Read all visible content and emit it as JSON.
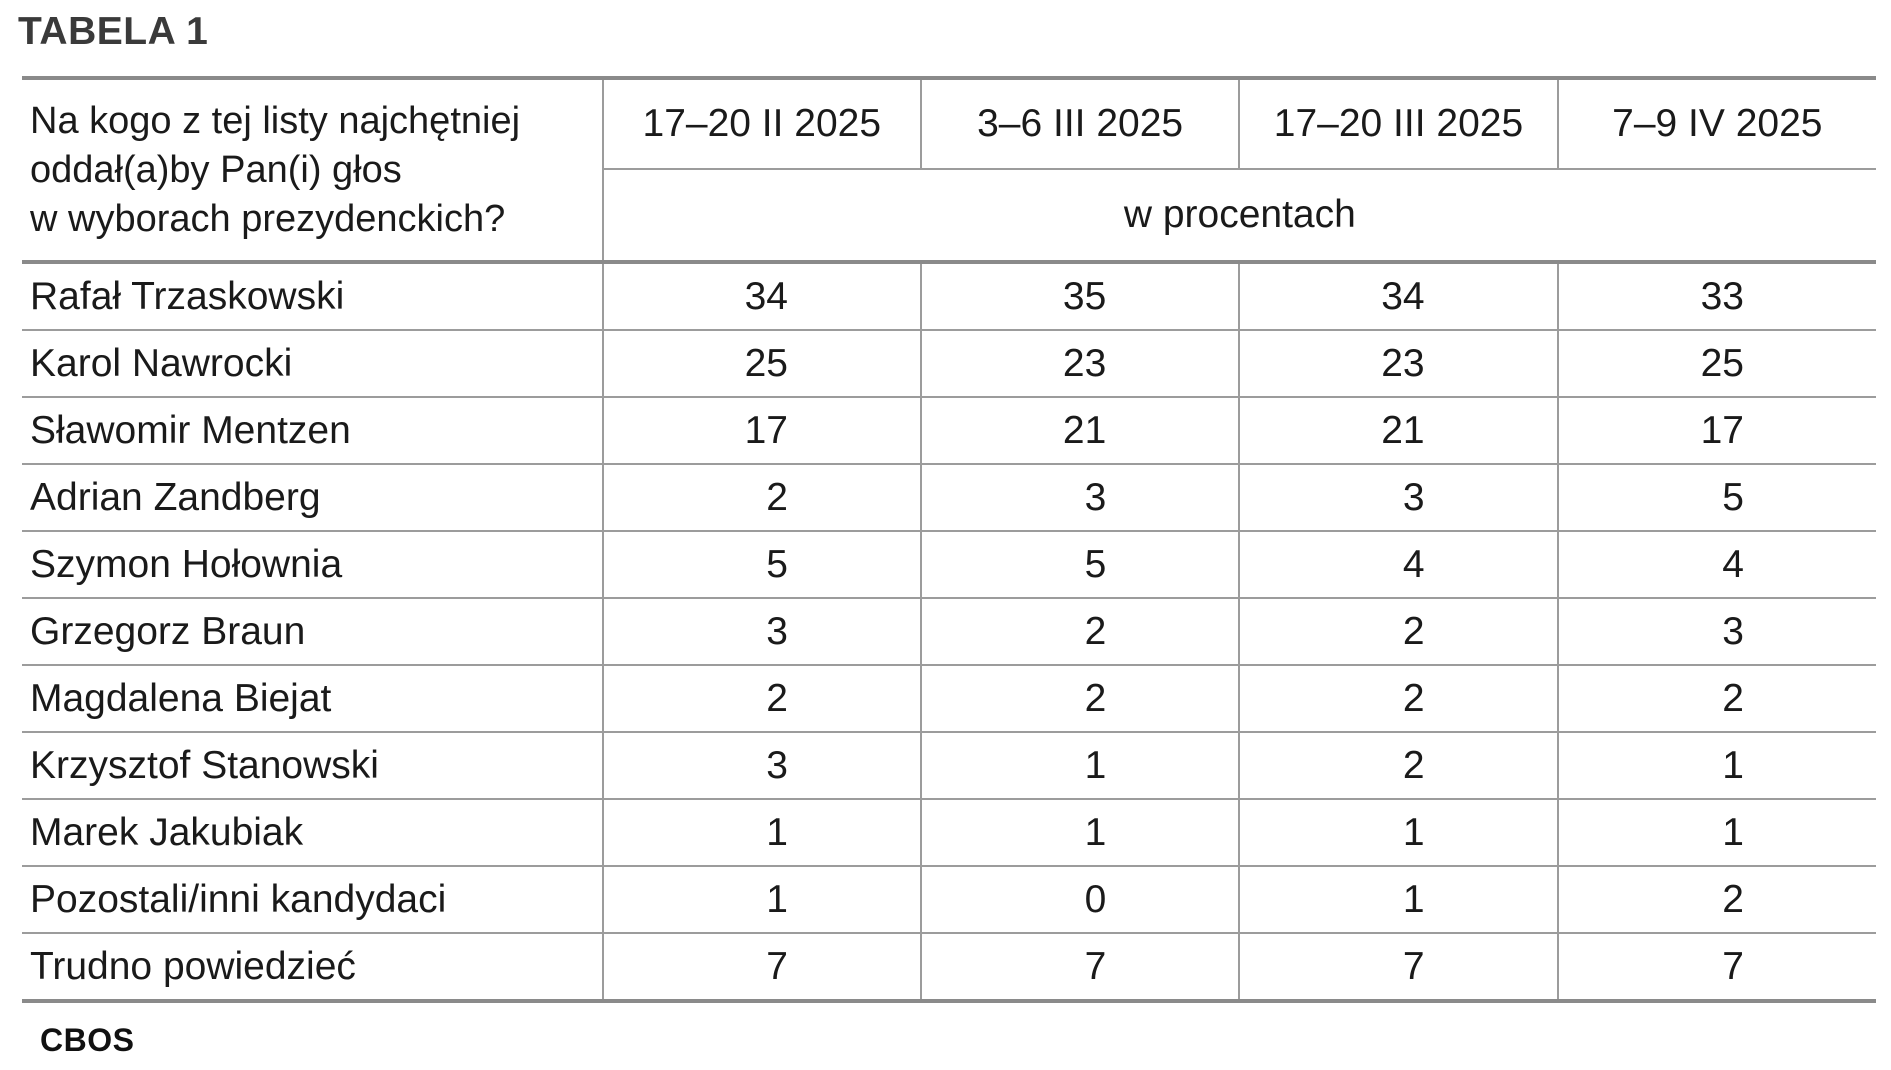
{
  "table_label": "TABELA 1",
  "question": "Na kogo z tej listy najchętniej oddał(a)by Pan(i) głos w wyborach prezydenckich?",
  "question_lines": [
    "Na kogo z tej listy najchętniej",
    "oddał(a)by Pan(i) głos",
    "w wyborach prezydenckich?"
  ],
  "dates": [
    "17–20 II 2025",
    "3–6 III 2025",
    "17–20 III 2025",
    "7–9 IV 2025"
  ],
  "unit": "w procentach",
  "rows": [
    {
      "name": "Rafał Trzaskowski",
      "values": [
        "34",
        "35",
        "34",
        "33"
      ]
    },
    {
      "name": "Karol Nawrocki",
      "values": [
        "25",
        "23",
        "23",
        "25"
      ]
    },
    {
      "name": "Sławomir Mentzen",
      "values": [
        "17",
        "21",
        "21",
        "17"
      ]
    },
    {
      "name": "Adrian Zandberg",
      "values": [
        "2",
        "3",
        "3",
        "5"
      ]
    },
    {
      "name": "Szymon Hołownia",
      "values": [
        "5",
        "5",
        "4",
        "4"
      ]
    },
    {
      "name": "Grzegorz Braun",
      "values": [
        "3",
        "2",
        "2",
        "3"
      ]
    },
    {
      "name": "Magdalena Biejat",
      "values": [
        "2",
        "2",
        "2",
        "2"
      ]
    },
    {
      "name": "Krzysztof Stanowski",
      "values": [
        "3",
        "1",
        "2",
        "1"
      ]
    },
    {
      "name": "Marek Jakubiak",
      "values": [
        "1",
        "1",
        "1",
        "1"
      ]
    },
    {
      "name": "Pozostali/inni kandydaci",
      "values": [
        "1",
        "0",
        "1",
        "2"
      ]
    },
    {
      "name": "Trudno powiedzieć",
      "values": [
        "7",
        "7",
        "7",
        "7"
      ]
    }
  ],
  "source": "CBOS"
}
